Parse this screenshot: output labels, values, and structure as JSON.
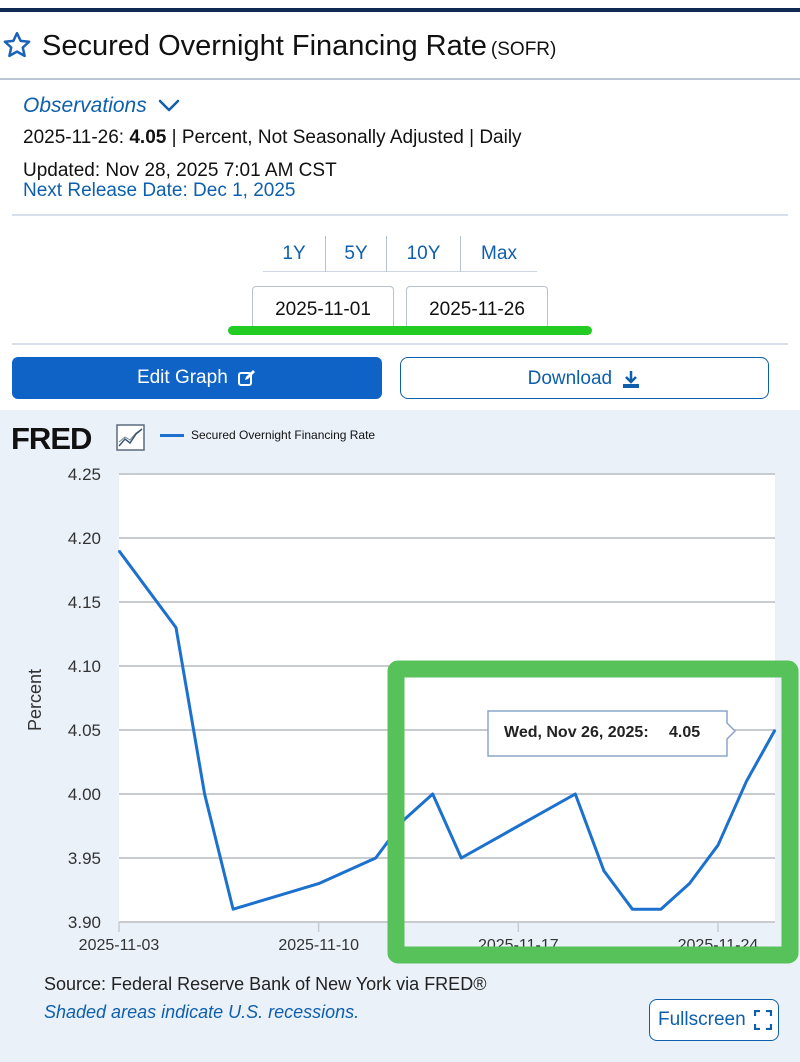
{
  "header": {
    "title": "Secured Overnight Financing Rate",
    "code": "(SOFR)",
    "star_icon": "star-outline-icon"
  },
  "observations": {
    "label": "Observations",
    "date": "2025-11-26:",
    "value": "4.05",
    "details": "| Percent, Not Seasonally Adjusted | Daily",
    "updated": "Updated: Nov 28, 2025 7:01 AM CST",
    "next_release": "Next Release Date: Dec 1, 2025"
  },
  "range_buttons": [
    "1Y",
    "5Y",
    "10Y",
    "Max"
  ],
  "date_range": {
    "start": "2025-11-01",
    "end": "2025-11-26"
  },
  "actions": {
    "edit": "Edit Graph",
    "download": "Download",
    "fullscreen": "Fullscreen"
  },
  "brand": {
    "logo": "FRED",
    "accent": "#0f63c7",
    "line_color": "#1b71cd",
    "highlight_color": "#58c25a",
    "underline_color": "#22cc22"
  },
  "footer": {
    "source": "Source: Federal Reserve Bank of New York via FRED®",
    "shaded": "Shaded areas indicate U.S. recessions."
  },
  "chart_data": {
    "type": "line",
    "ylabel": "Percent",
    "xlabel": "",
    "ylim": [
      3.9,
      4.25
    ],
    "yticks": [
      "4.25",
      "4.20",
      "4.15",
      "4.10",
      "4.05",
      "4.00",
      "3.95",
      "3.90"
    ],
    "xticks": [
      "2025-11-03",
      "2025-11-10",
      "2025-11-17",
      "2025-11-24"
    ],
    "grid": true,
    "legend": "top-left",
    "tooltip": {
      "label": "Wed, Nov 26, 2025:",
      "value": "4.05"
    },
    "series": [
      {
        "name": "Secured Overnight Financing Rate",
        "points": [
          [
            "2025-11-03",
            4.19
          ],
          [
            "2025-11-05",
            4.13
          ],
          [
            "2025-11-06",
            4.0
          ],
          [
            "2025-11-07",
            3.91
          ],
          [
            "2025-11-10",
            3.93
          ],
          [
            "2025-11-12",
            3.95
          ],
          [
            "2025-11-13",
            3.98
          ],
          [
            "2025-11-14",
            4.0
          ],
          [
            "2025-11-15",
            3.95
          ],
          [
            "2025-11-19",
            4.0
          ],
          [
            "2025-11-20",
            3.94
          ],
          [
            "2025-11-21",
            3.91
          ],
          [
            "2025-11-22",
            3.91
          ],
          [
            "2025-11-23",
            3.93
          ],
          [
            "2025-11-24",
            3.96
          ],
          [
            "2025-11-25",
            4.01
          ],
          [
            "2025-11-26",
            4.05
          ]
        ]
      }
    ]
  }
}
